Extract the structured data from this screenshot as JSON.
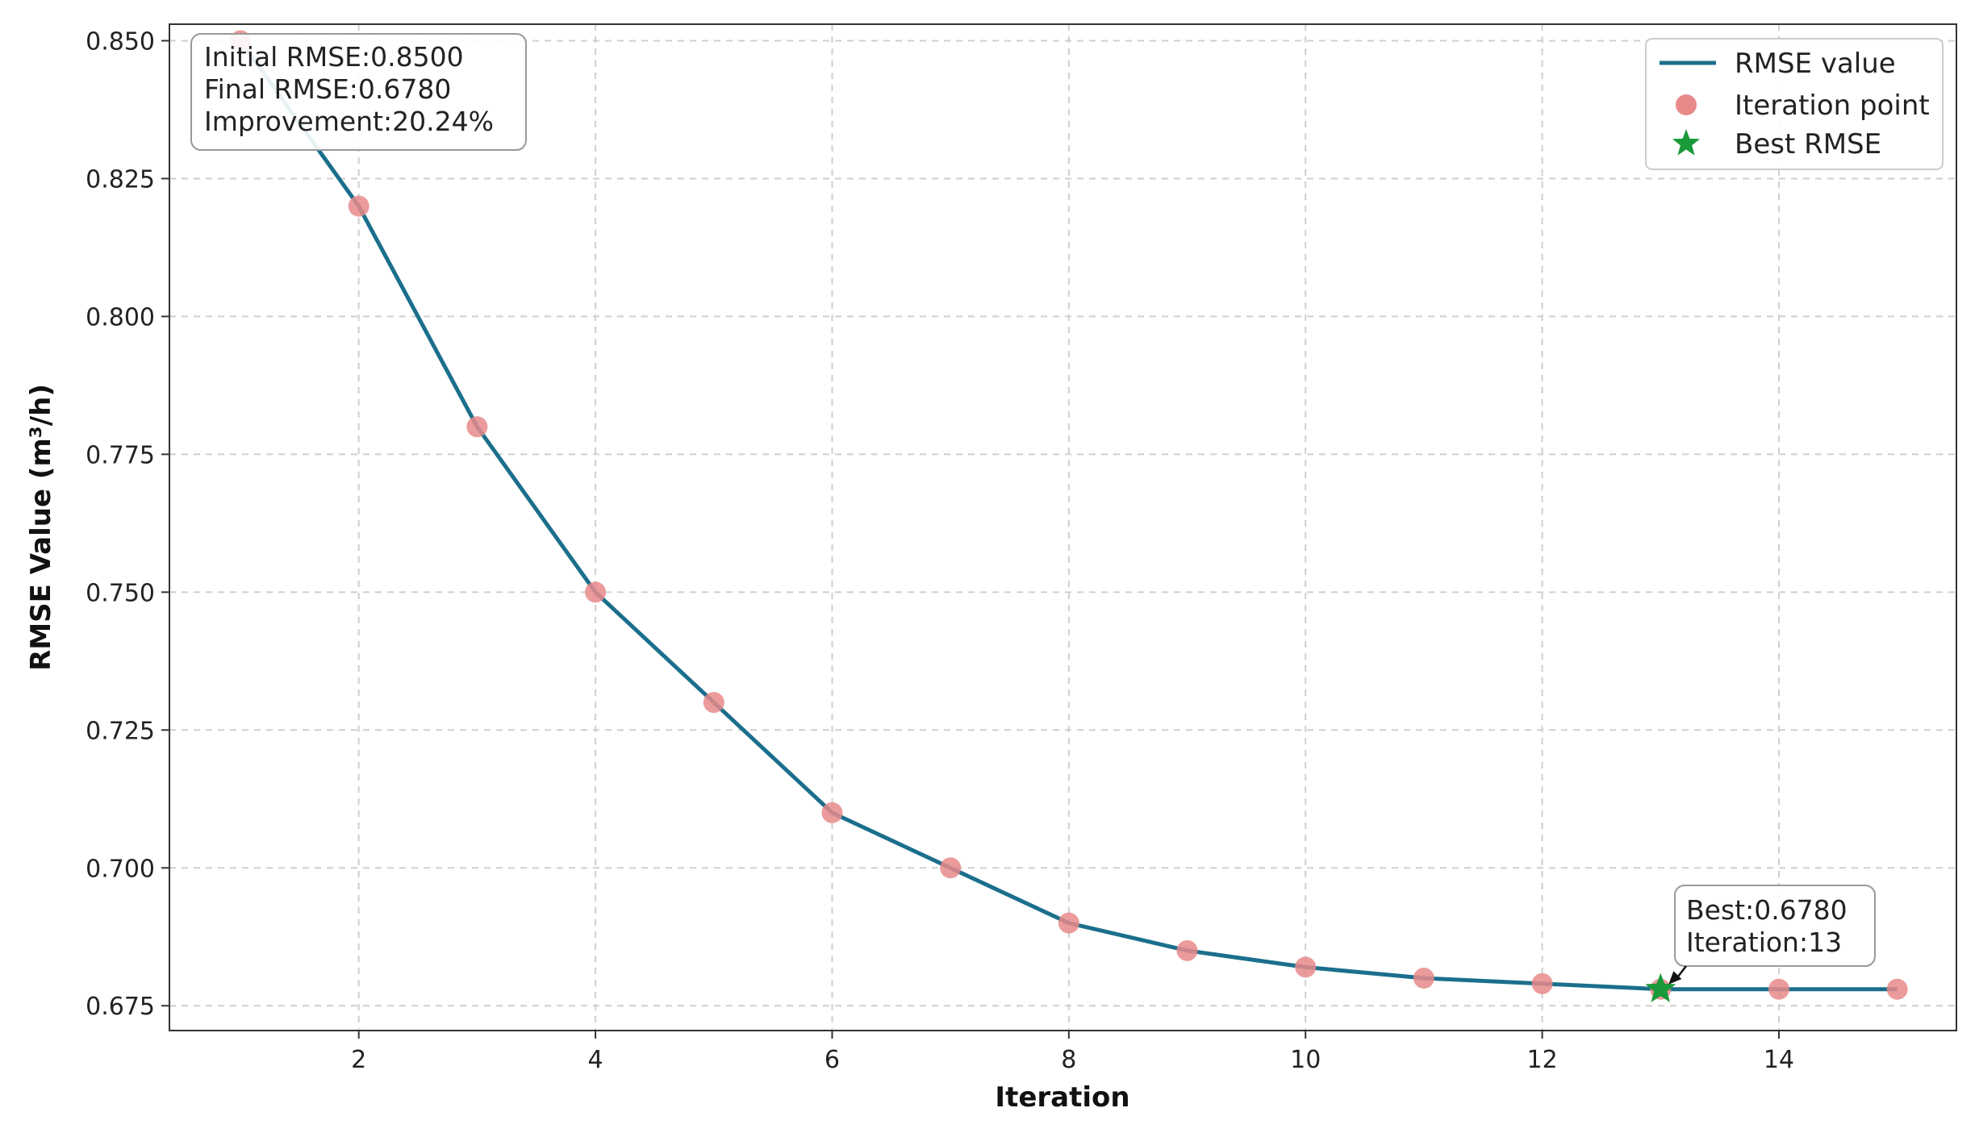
{
  "chart_data": {
    "type": "line",
    "xlabel": "Iteration",
    "ylabel": "RMSE Value (m³/h)",
    "xlim": [
      0.4,
      15.5
    ],
    "ylim": [
      0.6705,
      0.853
    ],
    "x_ticks": [
      2,
      4,
      6,
      8,
      10,
      12,
      14
    ],
    "y_ticks": [
      0.675,
      0.7,
      0.725,
      0.75,
      0.775,
      0.8,
      0.825,
      0.85
    ],
    "y_tick_labels": [
      "0.675",
      "0.700",
      "0.725",
      "0.750",
      "0.775",
      "0.800",
      "0.825",
      "0.850"
    ],
    "grid": true,
    "legend_position": "top-right",
    "series": [
      {
        "name": "RMSE value",
        "kind": "line",
        "color": "#1b6f8c",
        "x": [
          1,
          2,
          3,
          4,
          5,
          6,
          7,
          8,
          9,
          10,
          11,
          12,
          13,
          14,
          15
        ],
        "y": [
          0.85,
          0.82,
          0.78,
          0.75,
          0.73,
          0.71,
          0.7,
          0.69,
          0.685,
          0.682,
          0.68,
          0.679,
          0.678,
          0.678,
          0.678
        ]
      },
      {
        "name": "Iteration point",
        "kind": "scatter",
        "color": "#e88a8a",
        "x": [
          1,
          2,
          3,
          4,
          5,
          6,
          7,
          8,
          9,
          10,
          11,
          12,
          13,
          14,
          15
        ],
        "y": [
          0.85,
          0.82,
          0.78,
          0.75,
          0.73,
          0.71,
          0.7,
          0.69,
          0.685,
          0.682,
          0.68,
          0.679,
          0.678,
          0.678,
          0.678
        ]
      },
      {
        "name": "Best RMSE",
        "kind": "star",
        "color": "#1a9a3a",
        "x": [
          13
        ],
        "y": [
          0.678
        ]
      }
    ],
    "summary_box": {
      "lines": [
        {
          "label": "Initial RMSE:",
          "value": "0.8500"
        },
        {
          "label": "Final RMSE:",
          "value": "0.6780"
        },
        {
          "label": "Improvement:",
          "value": "20.24%"
        }
      ]
    },
    "best_annotation": {
      "lines": [
        {
          "label": "Best:",
          "value": "0.6780"
        },
        {
          "label": "Iteration:",
          "value": "13"
        }
      ],
      "point": [
        13,
        0.678
      ]
    }
  }
}
